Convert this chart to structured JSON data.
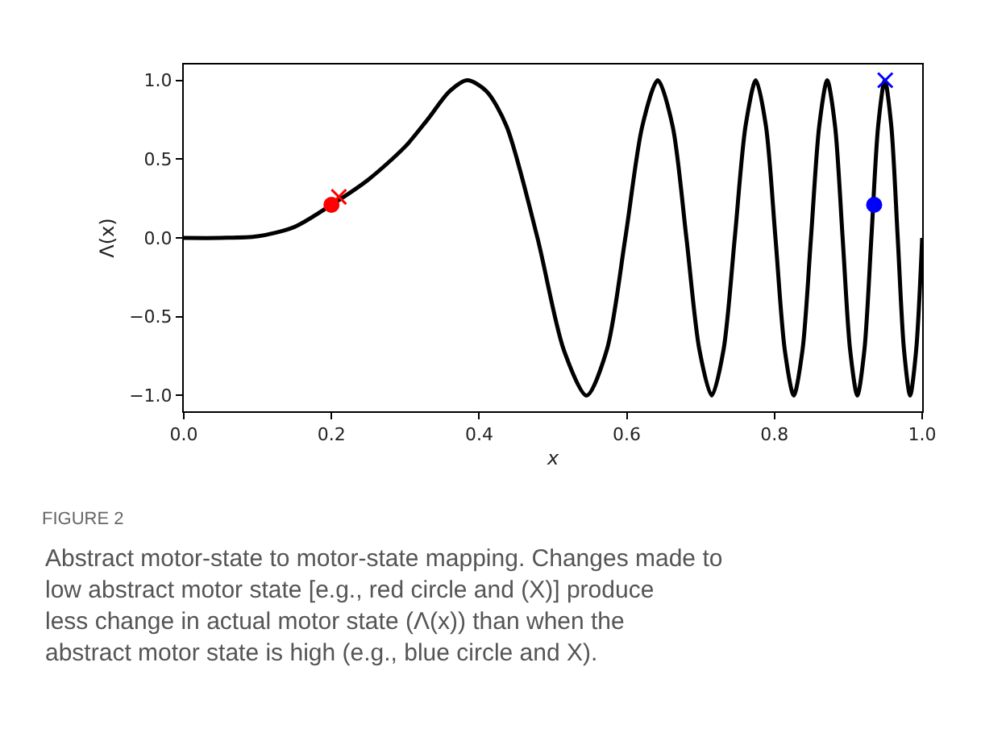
{
  "chart_data": {
    "type": "line",
    "title": "FIGURE 2",
    "xlabel": "x",
    "ylabel": "Λ(x)",
    "annotations": [
      "Abstract motor-state to motor-state mapping. Changes made to low abstract motor state [e.g., red circle and (X)] produce less change in actual motor state (Λ(x)) than when the abstract motor state is high (e.g., blue circle and X)."
    ],
    "xlim": [
      0,
      1
    ],
    "ylim": [
      -1.1,
      1.1
    ],
    "xticks": [
      {
        "value": 0,
        "label": "0.0"
      },
      {
        "value": 0.2,
        "label": "0.2"
      },
      {
        "value": 0.4,
        "label": "0.4"
      },
      {
        "value": 0.6,
        "label": "0.6"
      },
      {
        "value": 0.8,
        "label": "0.8"
      },
      {
        "value": 1,
        "label": "1.0"
      }
    ],
    "yticks": [
      {
        "value": -1,
        "label": "−1.0"
      },
      {
        "value": -0.5,
        "label": "−0.5"
      },
      {
        "value": 0,
        "label": "0.0"
      },
      {
        "value": 0.5,
        "label": "0.5"
      },
      {
        "value": 1,
        "label": "1.0"
      }
    ],
    "series": [
      {
        "color": "#000000",
        "marker": "none",
        "line_style": "solid",
        "x": [
          0,
          0.05,
          0.1,
          0.15,
          0.2,
          0.25,
          0.3,
          0.33,
          0.36,
          0.384,
          0.41,
          0.437,
          0.479,
          0.5146,
          0.5455,
          0.573,
          0.598,
          0.621,
          0.642,
          0.662,
          0.6807,
          0.6983,
          0.715,
          0.731,
          0.7462,
          0.7608,
          0.7748,
          0.7884,
          0.8013,
          0.8139,
          0.8261,
          0.838,
          0.8494,
          0.8606,
          0.8714,
          0.882,
          0.8923,
          0.9024,
          0.9122,
          0.9218,
          0.9312,
          0.9404,
          0.9494,
          0.9582,
          0.9669,
          0.9754,
          0.9837,
          0.9919,
          1.0
        ],
        "values": [
          0,
          0.0,
          0.01,
          0.07,
          0.21,
          0.37,
          0.58,
          0.75,
          0.93,
          1.0,
          0.93,
          0.71,
          0,
          -0.71,
          -1,
          -0.71,
          0,
          0.71,
          1,
          0.71,
          0,
          -0.71,
          -1,
          -0.71,
          0,
          0.71,
          1,
          0.71,
          0,
          -0.71,
          -1,
          -0.71,
          0,
          0.71,
          1,
          0.71,
          0,
          -0.71,
          -1,
          -0.71,
          0,
          0.71,
          1,
          0.71,
          0,
          -0.71,
          -1,
          -0.71,
          0
        ]
      },
      {
        "type": "scatter",
        "color": "#ff0000",
        "marker": "circle",
        "x": [
          0.2
        ],
        "values": [
          0.21
        ]
      },
      {
        "type": "scatter",
        "color": "#ff0000",
        "marker": "cross",
        "x": [
          0.21
        ],
        "values": [
          0.26
        ]
      },
      {
        "type": "scatter",
        "color": "#0000ff",
        "marker": "circle",
        "x": [
          0.935
        ],
        "values": [
          0.21
        ]
      },
      {
        "type": "scatter",
        "color": "#0000ff",
        "marker": "cross",
        "x": [
          0.95
        ],
        "values": [
          1.0
        ]
      }
    ]
  }
}
